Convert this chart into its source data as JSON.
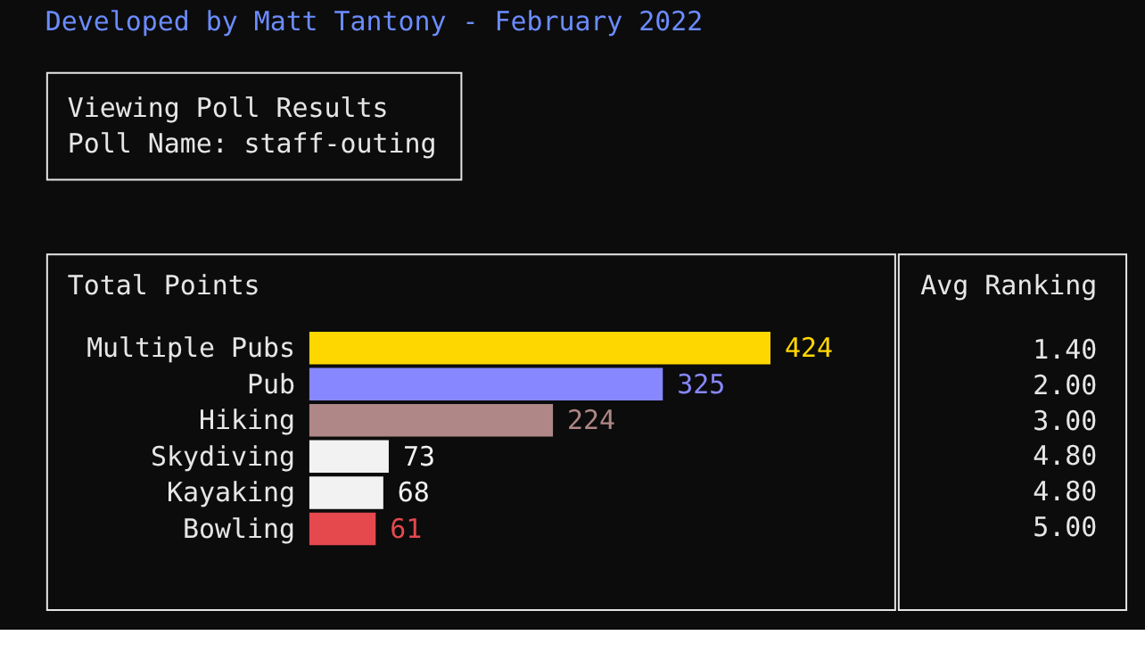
{
  "chart_data": [
    {
      "type": "other",
      "title": "Developed by Matt Tantony - February 2022",
      "annotations": [
        "Viewing Poll Results",
        "Poll Name: staff-outing"
      ]
    },
    {
      "type": "bar",
      "orientation": "horizontal",
      "title": "Total Points",
      "data_labels": true,
      "categories": [
        "Multiple Pubs",
        "Pub",
        "Hiking",
        "Skydiving",
        "Kayaking",
        "Bowling"
      ],
      "values": [
        424,
        325,
        224,
        73,
        68,
        61
      ],
      "colors": [
        "#ffd700",
        "#8787ff",
        "#af8787",
        "#f2f2f2",
        "#f2f2f2",
        "#e5484d"
      ]
    },
    {
      "type": "other",
      "title": "Avg Ranking",
      "annotations": [
        "1.40",
        "2.00",
        "3.00",
        "4.80",
        "4.80",
        "5.00"
      ]
    }
  ]
}
